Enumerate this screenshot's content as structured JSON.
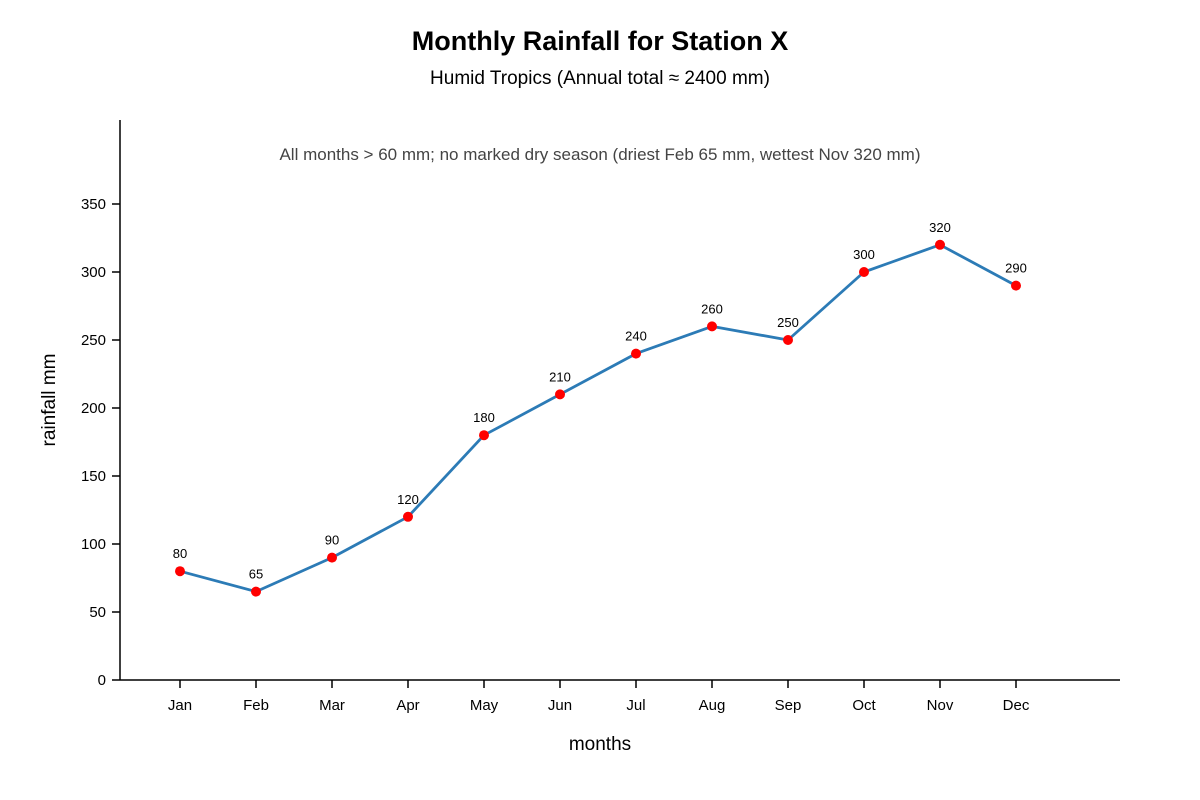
{
  "chart_data": {
    "type": "line",
    "title": "Monthly Rainfall for Station X",
    "subtitle": "Humid Tropics (Annual total ≈ 2400 mm)",
    "annotation": "All months > 60 mm; no marked dry season (driest Feb 65 mm, wettest Nov 320 mm)",
    "xlabel": "months",
    "ylabel": "rainfall mm",
    "categories": [
      "Jan",
      "Feb",
      "Mar",
      "Apr",
      "May",
      "Jun",
      "Jul",
      "Aug",
      "Sep",
      "Oct",
      "Nov",
      "Dec"
    ],
    "series": [
      {
        "values": [
          80,
          65,
          90,
          120,
          180,
          210,
          240,
          260,
          250,
          300,
          320,
          290
        ],
        "line_color": "#2c7bb6",
        "marker_color": "#ff0000"
      }
    ],
    "ylim": [
      0,
      400
    ],
    "yticks": [
      0,
      50,
      100,
      150,
      200,
      250,
      300,
      350
    ],
    "data_labels": true,
    "grid": false,
    "legend": "none"
  }
}
